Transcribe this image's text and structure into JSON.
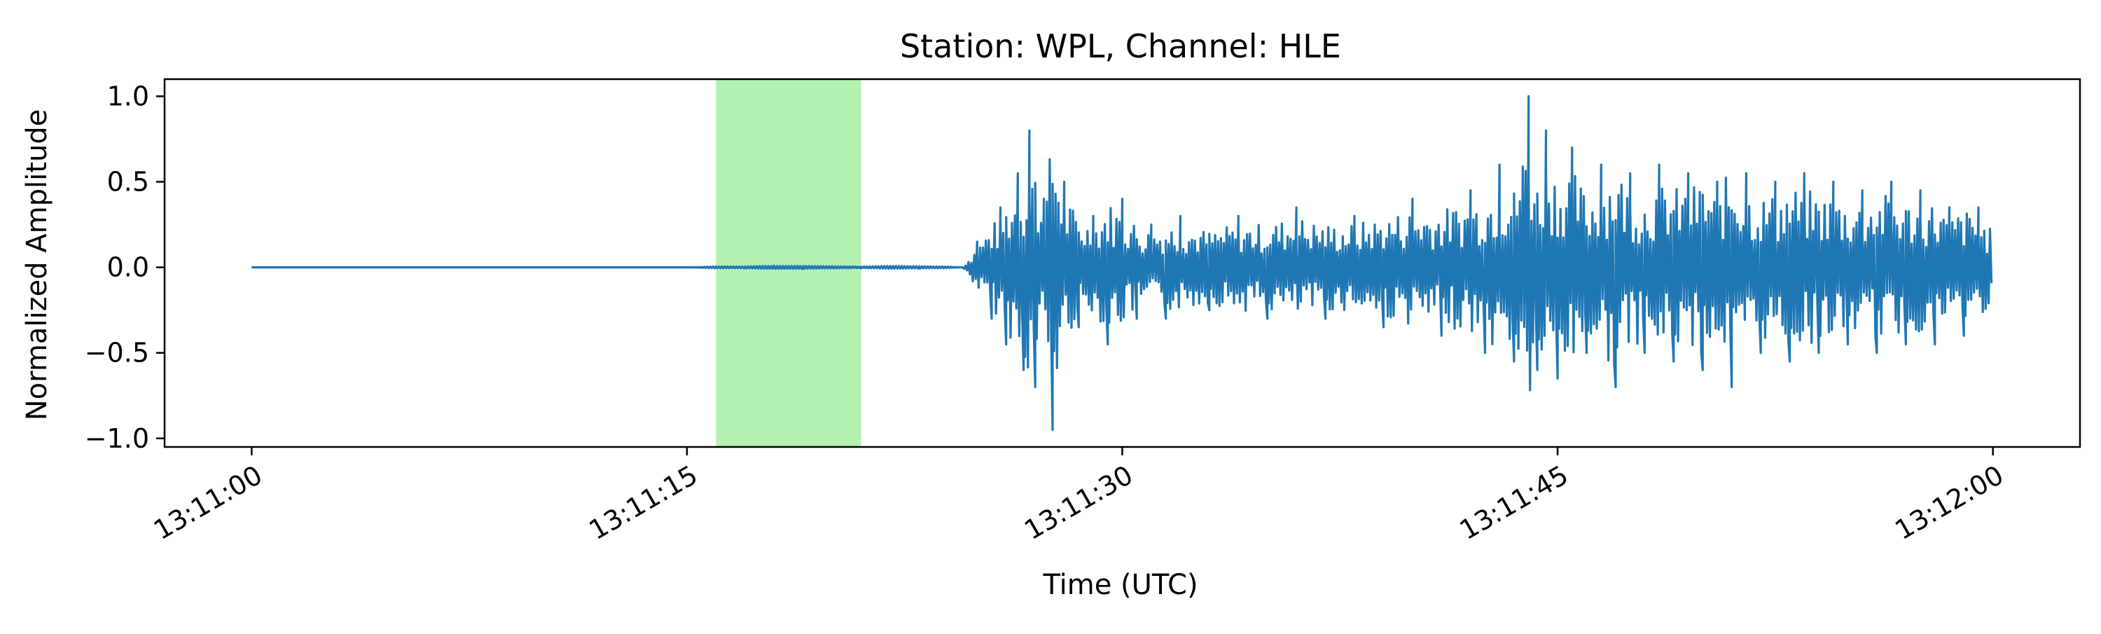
{
  "chart_data": {
    "type": "line",
    "title": "Station: WPL, Channel: HLE",
    "xlabel": "Time (UTC)",
    "ylabel": "Normalized Amplitude",
    "x_range": [
      "13:10:57",
      "13:12:03"
    ],
    "x_ticks": [
      "13:11:00",
      "13:11:15",
      "13:11:30",
      "13:11:45",
      "13:12:00"
    ],
    "ylim": [
      -1.05,
      1.1
    ],
    "y_ticks": [
      {
        "value": 1.0,
        "label": "1.0"
      },
      {
        "value": 0.5,
        "label": "0.5"
      },
      {
        "value": 0.0,
        "label": "0.0"
      },
      {
        "value": -0.5,
        "label": "−0.5"
      },
      {
        "value": -1.0,
        "label": "−1.0"
      }
    ],
    "grid": false,
    "legend": "none",
    "highlight_window": {
      "start": "13:11:16",
      "end": "13:11:21",
      "color": "#b3f2b3"
    },
    "series": [
      {
        "color": "#1f77b4",
        "x": [
          "13:11:00",
          "13:11:15",
          "13:11:16",
          "13:11:17",
          "13:11:18",
          "13:11:19",
          "13:11:20",
          "13:11:21",
          "13:11:22",
          "13:11:23",
          "13:11:24",
          "13:11:24.5",
          "13:11:25",
          "13:11:25.5",
          "13:11:25.8",
          "13:11:26",
          "13:11:26.4",
          "13:11:26.6",
          "13:11:26.8",
          "13:11:27",
          "13:11:27.3",
          "13:11:27.6",
          "13:11:28",
          "13:11:28.5",
          "13:11:29",
          "13:11:29.5",
          "13:11:30",
          "13:11:30.5",
          "13:11:31",
          "13:11:31.5",
          "13:11:32",
          "13:11:33",
          "13:11:34",
          "13:11:35",
          "13:11:36",
          "13:11:37",
          "13:11:38",
          "13:11:39",
          "13:11:40",
          "13:11:41",
          "13:11:42",
          "13:11:42.5",
          "13:11:43",
          "13:11:43.5",
          "13:11:44",
          "13:11:44.3",
          "13:11:44.6",
          "13:11:45",
          "13:11:45.5",
          "13:11:46",
          "13:11:46.5",
          "13:11:47",
          "13:11:47.5",
          "13:11:48",
          "13:11:48.5",
          "13:11:49",
          "13:11:49.5",
          "13:11:50",
          "13:11:50.5",
          "13:11:51",
          "13:11:51.5",
          "13:11:52",
          "13:11:52.5",
          "13:11:53",
          "13:11:53.5",
          "13:11:54",
          "13:11:54.5",
          "13:11:55",
          "13:11:55.5",
          "13:11:56",
          "13:11:56.5",
          "13:11:57",
          "13:11:57.5",
          "13:11:58",
          "13:11:58.5",
          "13:11:59",
          "13:11:59.5",
          "13:12:00"
        ],
        "y": [
          0.0,
          0.0,
          0.005,
          -0.005,
          0.01,
          -0.008,
          0.006,
          -0.004,
          0.008,
          -0.006,
          0.004,
          0.0,
          0.15,
          -0.3,
          0.35,
          -0.45,
          0.55,
          -0.6,
          0.8,
          -0.7,
          0.4,
          -0.95,
          0.5,
          -0.35,
          0.3,
          -0.45,
          0.4,
          -0.3,
          0.25,
          -0.3,
          0.3,
          -0.25,
          0.3,
          -0.3,
          0.35,
          -0.3,
          0.3,
          -0.35,
          0.4,
          -0.4,
          0.45,
          -0.5,
          0.6,
          -0.55,
          1.0,
          -0.6,
          0.8,
          -0.65,
          0.7,
          -0.5,
          0.6,
          -0.7,
          0.55,
          -0.5,
          0.6,
          -0.55,
          0.55,
          -0.6,
          0.5,
          -0.7,
          0.55,
          -0.5,
          0.5,
          -0.55,
          0.55,
          -0.5,
          0.5,
          -0.45,
          0.45,
          -0.5,
          0.5,
          -0.45,
          0.45,
          -0.45,
          0.35,
          -0.4,
          0.35,
          -0.25
        ]
      }
    ]
  }
}
